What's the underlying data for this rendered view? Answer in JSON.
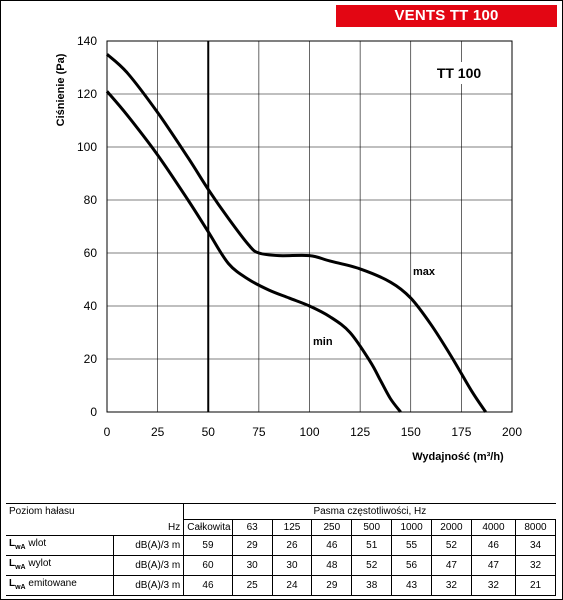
{
  "header": {
    "brand_label": "VENTS TT 100"
  },
  "chart_data": {
    "type": "line",
    "title": "TT 100",
    "xlabel": "Wydajność (m³/h)",
    "ylabel": "Ciśnienie (Pa)",
    "xlim": [
      0,
      200
    ],
    "ylim": [
      0,
      140
    ],
    "xticks": [
      0,
      25,
      50,
      75,
      100,
      125,
      150,
      175,
      200
    ],
    "yticks": [
      0,
      20,
      40,
      60,
      80,
      100,
      120,
      140
    ],
    "grid": true,
    "series": [
      {
        "name": "max",
        "x": [
          0,
          10,
          25,
          40,
          50,
          60,
          70,
          75,
          85,
          100,
          110,
          125,
          140,
          150,
          160,
          170,
          180,
          187
        ],
        "y": [
          135,
          128,
          113,
          96,
          84,
          73,
          63,
          60,
          59,
          59,
          57,
          54,
          49,
          43,
          33,
          21,
          8,
          0
        ]
      },
      {
        "name": "min",
        "x": [
          0,
          10,
          25,
          40,
          50,
          60,
          70,
          80,
          90,
          100,
          110,
          120,
          130,
          135,
          140,
          145
        ],
        "y": [
          121,
          112,
          97,
          80,
          68,
          56,
          50,
          46,
          43,
          40,
          36,
          30,
          19,
          12,
          5,
          0
        ]
      }
    ]
  },
  "noise_table": {
    "title": "Poziom hałasu",
    "bands_title": "Pasma częstotliwości, Hz",
    "unit_header": "Hz",
    "columns": [
      "Całkowita",
      "63",
      "125",
      "250",
      "500",
      "1000",
      "2000",
      "4000",
      "8000"
    ],
    "rows": [
      {
        "lw": "L",
        "sub": "wA",
        "label": "wlot",
        "unit": "dB(A)/3 m",
        "values": [
          "59",
          "29",
          "26",
          "46",
          "51",
          "55",
          "52",
          "46",
          "34"
        ]
      },
      {
        "lw": "L",
        "sub": "wA",
        "label": "wylot",
        "unit": "dB(A)/3 m",
        "values": [
          "60",
          "30",
          "30",
          "48",
          "52",
          "56",
          "47",
          "47",
          "32"
        ]
      },
      {
        "lw": "L",
        "sub": "wA",
        "label": "emitowane",
        "unit": "dB(A)/3 m",
        "values": [
          "46",
          "25",
          "24",
          "29",
          "38",
          "43",
          "32",
          "32",
          "21"
        ]
      }
    ]
  }
}
